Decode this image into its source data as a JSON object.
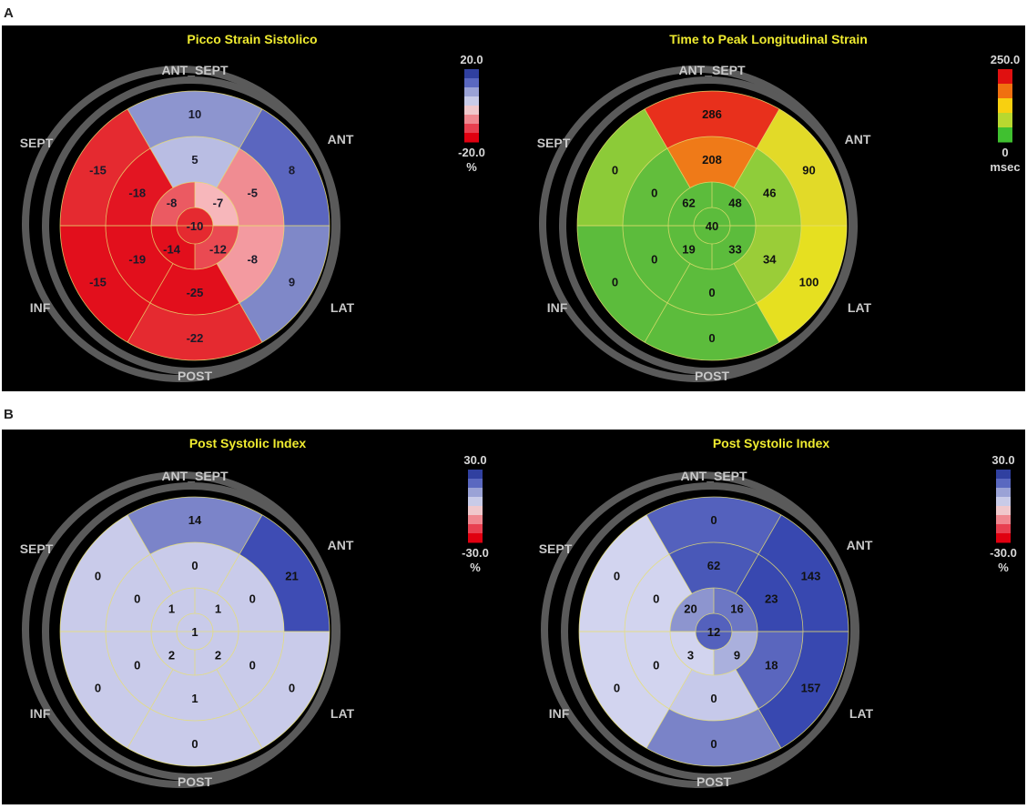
{
  "panels": [
    {
      "label": "A",
      "plots": [
        {
          "title": "Picco Strain Sistolico",
          "map": "strain",
          "dirs": [
            "ANT_SEPT",
            "ANT",
            "LAT",
            "POST",
            "INF",
            "SEPT"
          ],
          "segments": {
            "basal": [
              "10",
              "8",
              "9",
              "-22",
              "-15",
              "-15"
            ],
            "mid": [
              "5",
              "-5",
              "-8",
              "-25",
              "-19",
              "-18"
            ],
            "apical": [
              "-7",
              "-12",
              "-14",
              "-8"
            ],
            "apex": "-10"
          },
          "scale": {
            "top": "20.0",
            "bottom": "-20.0",
            "unit": "%",
            "colors": [
              "#3040a0",
              "#5a68c0",
              "#9aa2d6",
              "#c8cbe8",
              "#f0c8cc",
              "#f08890",
              "#e84050",
              "#e00010"
            ]
          }
        },
        {
          "title": "Time to Peak Longitudinal Strain",
          "map": "ttp",
          "dirs": [
            "ANT_SEPT",
            "ANT",
            "LAT",
            "POST",
            "INF",
            "SEPT"
          ],
          "segments": {
            "basal": [
              "286",
              "90",
              "100",
              "0",
              "0",
              "0"
            ],
            "mid": [
              "208",
              "46",
              "34",
              "0",
              "0",
              "0"
            ],
            "apical": [
              "48",
              "33",
              "19",
              "62"
            ],
            "apex": "40"
          },
          "scale": {
            "top": "250.0",
            "bottom": "0",
            "unit": "msec",
            "colors": [
              "#e01010",
              "#f07010",
              "#f8d010",
              "#b8d830",
              "#40c030"
            ]
          }
        }
      ]
    },
    {
      "label": "B",
      "plots": [
        {
          "title": "Post Systolic Index",
          "map": "psi1",
          "dirs": [
            "ANT_SEPT",
            "ANT",
            "LAT",
            "POST",
            "INF",
            "SEPT"
          ],
          "segments": {
            "basal": [
              "14",
              "21",
              "0",
              "0",
              "0",
              "0"
            ],
            "mid": [
              "0",
              "0",
              "0",
              "1",
              "0",
              "0"
            ],
            "apical": [
              "1",
              "2",
              "2",
              "1"
            ],
            "apex": "1"
          },
          "scale": {
            "top": "30.0",
            "bottom": "-30.0",
            "unit": "%",
            "colors": [
              "#3040a0",
              "#5a68c0",
              "#9aa2d6",
              "#c8cbe8",
              "#f0c8cc",
              "#f08890",
              "#e84050",
              "#e00010"
            ]
          }
        },
        {
          "title": "Post Systolic Index",
          "map": "psi2",
          "dirs": [
            "ANT_SEPT",
            "ANT",
            "LAT",
            "POST",
            "INF",
            "SEPT"
          ],
          "segments": {
            "basal": [
              "0",
              "143",
              "157",
              "0",
              "0",
              "0"
            ],
            "mid": [
              "62",
              "23",
              "18",
              "0",
              "0",
              "0"
            ],
            "apical": [
              "16",
              "9",
              "3",
              "20"
            ],
            "apex": "12"
          },
          "scale": {
            "top": "30.0",
            "bottom": "-30.0",
            "unit": "%",
            "colors": [
              "#3040a0",
              "#5a68c0",
              "#9aa2d6",
              "#c8cbe8",
              "#f0c8cc",
              "#f08890",
              "#e84050",
              "#e00010"
            ]
          }
        }
      ]
    }
  ]
}
